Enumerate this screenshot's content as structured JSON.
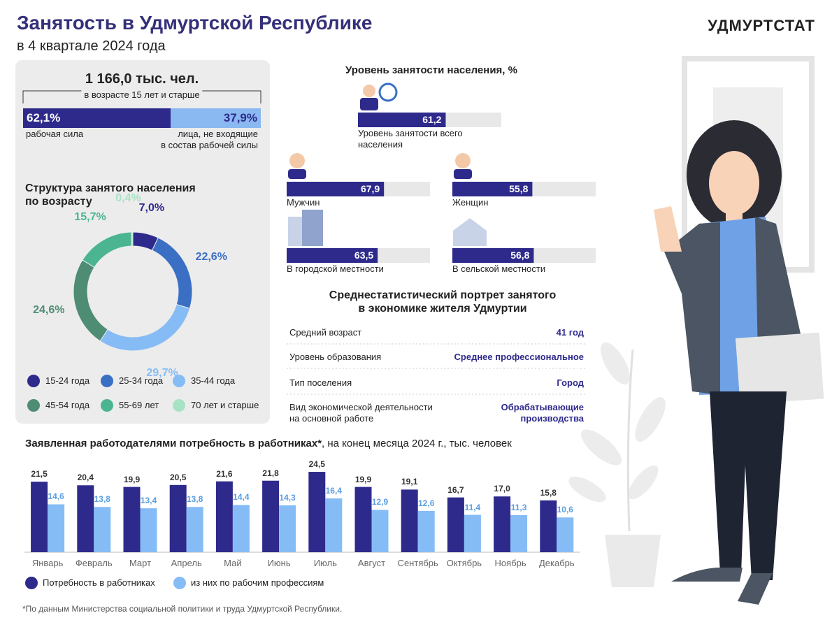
{
  "header": {
    "title": "Занятость в Удмуртской Республике",
    "subtitle": "в 4 квартале 2024 года",
    "logo": "УДМУРТСТАТ"
  },
  "labor": {
    "total": "1 166,0 тыс. чел.",
    "note": "в возрасте 15 лет и старше"
  },
  "chart_data": [
    {
      "type": "stacked-bar",
      "categories": [
        "рабочая сила",
        "лица, не входящие\nв состав рабочей силы"
      ],
      "values": [
        62.1,
        37.9
      ],
      "value_labels": [
        "62,1%",
        "37,9%"
      ],
      "colors": [
        "#2e2a8c",
        "#8ab8f0"
      ]
    },
    {
      "type": "donut",
      "title": "Структура занятого населения\nпо возрасту",
      "categories": [
        "15-24 года",
        "25-34 года",
        "35-44 года",
        "45-54 года",
        "55-69 лет",
        "70 лет и старше"
      ],
      "values": [
        7.0,
        22.6,
        29.7,
        24.6,
        15.7,
        0.4
      ],
      "value_labels": [
        "7,0%",
        "22,6%",
        "29,7%",
        "24,6%",
        "15,7%",
        "0,4%"
      ],
      "colors": [
        "#2e2a8c",
        "#3a6fc4",
        "#86bcf5",
        "#4e8c74",
        "#4bb592",
        "#a6e3c4"
      ]
    },
    {
      "type": "hbar",
      "title": "Уровень занятости населения, %",
      "categories": [
        "Уровень занятости всего\nнаселения",
        "Мужчин",
        "Женщин",
        "В городской местности",
        "В сельской местности"
      ],
      "values": [
        61.2,
        67.9,
        55.8,
        63.5,
        56.8
      ],
      "value_labels": [
        "61,2",
        "67,9",
        "55,8",
        "63,5",
        "56,8"
      ],
      "xlim": [
        0,
        100
      ],
      "color": "#2e2a8c"
    },
    {
      "type": "grouped-bar",
      "title": "Заявленная работодателями потребность в работниках*",
      "subtitle": ", на конец месяца 2024 г., тыс. человек",
      "categories": [
        "Январь",
        "Февраль",
        "Март",
        "Апрель",
        "Май",
        "Июнь",
        "Июль",
        "Август",
        "Сентябрь",
        "Октябрь",
        "Ноябрь",
        "Декабрь"
      ],
      "series": [
        {
          "name": "Потребность в работниках",
          "color": "#2e2a8c",
          "values": [
            21.5,
            20.4,
            19.9,
            20.5,
            21.6,
            21.8,
            24.5,
            19.9,
            19.1,
            16.7,
            17.0,
            15.8
          ],
          "value_labels": [
            "21,5",
            "20,4",
            "19,9",
            "20,5",
            "21,6",
            "21,8",
            "24,5",
            "19,9",
            "19,1",
            "16,7",
            "17,0",
            "15,8"
          ]
        },
        {
          "name": "из них по рабочим профессиям",
          "color": "#86bcf5",
          "values": [
            14.6,
            13.8,
            13.4,
            13.8,
            14.4,
            14.3,
            16.4,
            12.9,
            12.6,
            11.4,
            11.3,
            10.6
          ],
          "value_labels": [
            "14,6",
            "13,8",
            "13,4",
            "13,8",
            "14,4",
            "14,3",
            "16,4",
            "12,9",
            "12,6",
            "11,4",
            "11,3",
            "10,6"
          ]
        }
      ],
      "ylim": [
        0,
        26
      ]
    }
  ],
  "portrait": {
    "title": "Среднестатистический портрет занятого\nв экономике жителя Удмуртии",
    "rows": [
      [
        "Средний возраст",
        "41 год"
      ],
      [
        "Уровень образования",
        "Среднее профессиональное"
      ],
      [
        "Тип поселения",
        "Город"
      ],
      [
        "Вид экономической деятельности\nна основной работе",
        "Обрабатывающие\nпроизводства"
      ]
    ]
  },
  "footnote": "*По данным Министерства социальной политики и труда Удмуртской Республики."
}
